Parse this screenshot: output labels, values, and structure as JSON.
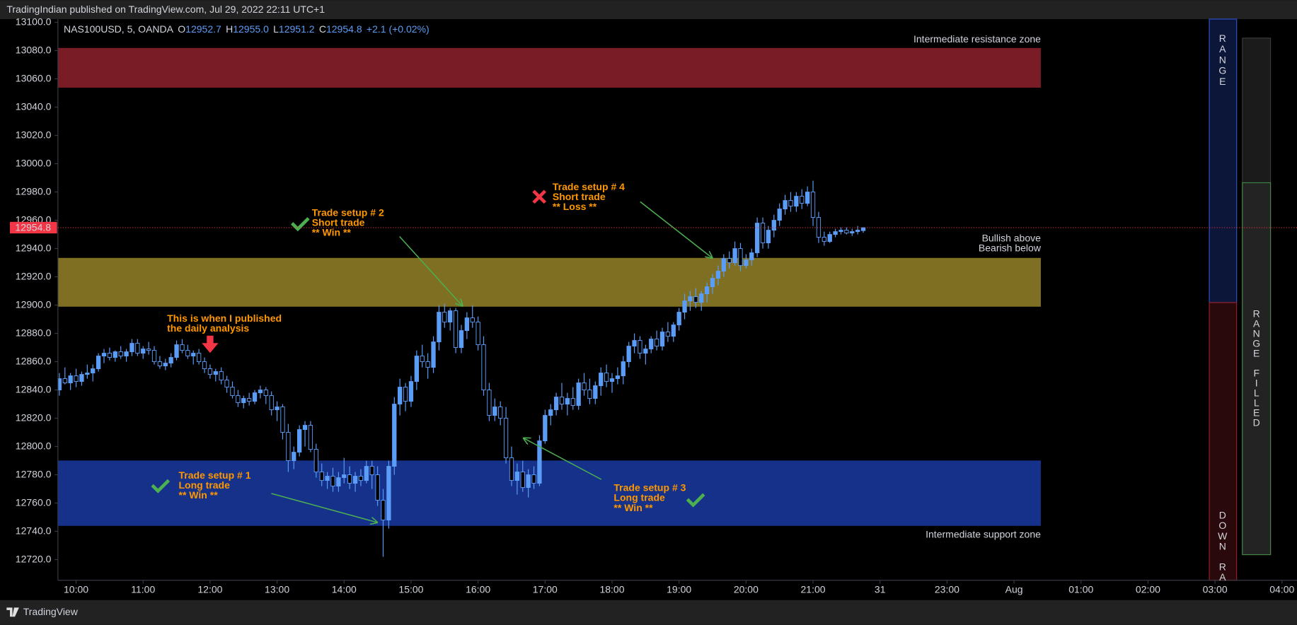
{
  "header": {
    "text": "TradingIndian published on TradingView.com, Jul 29, 2022 22:11 UTC+1"
  },
  "footer": {
    "brand": "TradingView"
  },
  "legend_bar": {
    "symbol": "NAS100USD, 5, OANDA",
    "open_label": "O",
    "open": "12952.7",
    "high_label": "H",
    "high": "12955.0",
    "low_label": "L",
    "low": "12951.2",
    "close_label": "C",
    "close": "12954.8",
    "change": "+2.1 (+0.02%)"
  },
  "range_panel": {
    "top_label": "RANGE",
    "bottom_label": "DOWN RA",
    "fill_label": "RANGE FILLED"
  },
  "chart_data": {
    "type": "candlestick",
    "colors": {
      "up": "#5b9cf6",
      "down": "#000000",
      "wick": "#5b9cf6"
    },
    "xlim": [
      583.7,
      1687.5
    ],
    "ylim": [
      12705.4,
      13102.3
    ],
    "xticks": [
      {
        "value": 600,
        "label": "10:00"
      },
      {
        "value": 660,
        "label": "11:00"
      },
      {
        "value": 720,
        "label": "12:00"
      },
      {
        "value": 780,
        "label": "13:00"
      },
      {
        "value": 840,
        "label": "14:00"
      },
      {
        "value": 900,
        "label": "15:00"
      },
      {
        "value": 960,
        "label": "16:00"
      },
      {
        "value": 1020,
        "label": "17:00"
      },
      {
        "value": 1080,
        "label": "18:00"
      },
      {
        "value": 1140,
        "label": "19:00"
      },
      {
        "value": 1200,
        "label": "20:00"
      },
      {
        "value": 1260,
        "label": "21:00"
      },
      {
        "value": 1320,
        "label": "31"
      },
      {
        "value": 1380,
        "label": "23:00"
      },
      {
        "value": 1440,
        "label": "Aug"
      },
      {
        "value": 1500,
        "label": "01:00"
      },
      {
        "value": 1560,
        "label": "02:00"
      },
      {
        "value": 1620,
        "label": "03:00"
      },
      {
        "value": 1680,
        "label": "04:00"
      }
    ],
    "yticks": [
      {
        "value": 12720,
        "label": "12720.0"
      },
      {
        "value": 12740,
        "label": "12740.0"
      },
      {
        "value": 12760,
        "label": "12760.0"
      },
      {
        "value": 12780,
        "label": "12780.0"
      },
      {
        "value": 12800,
        "label": "12800.0"
      },
      {
        "value": 12820,
        "label": "12820.0"
      },
      {
        "value": 12840,
        "label": "12840.0"
      },
      {
        "value": 12860,
        "label": "12860.0"
      },
      {
        "value": 12880,
        "label": "12880.0"
      },
      {
        "value": 12900,
        "label": "12900.0"
      },
      {
        "value": 12920,
        "label": "12920.0"
      },
      {
        "value": 12940,
        "label": "12940.0"
      },
      {
        "value": 12960,
        "label": "12960.0"
      },
      {
        "value": 12980,
        "label": "12980.0"
      },
      {
        "value": 13000,
        "label": "13000.0"
      },
      {
        "value": 13020,
        "label": "13020.0"
      },
      {
        "value": 13040,
        "label": "13040.0"
      },
      {
        "value": 13060,
        "label": "13060.0"
      },
      {
        "value": 13080,
        "label": "13080.0"
      },
      {
        "value": 13100,
        "label": "13100.0"
      }
    ],
    "last_price": 12954.8,
    "zones": [
      {
        "label": "Intermediate resistance zone",
        "range": [
          13053.8,
          13081.9
        ],
        "x_range": [
          583.7,
          1464
        ],
        "color": "#7a1c26"
      },
      {
        "labels": [
          "Bullish above",
          "Bearish below"
        ],
        "range": [
          12898.9,
          12933.4
        ],
        "x_range": [
          583.7,
          1464
        ],
        "color": "#7f6f22"
      },
      {
        "label": "Intermediate support zone",
        "range": [
          12743.9,
          12790.1
        ],
        "x_range": [
          583.7,
          1464
        ],
        "color": "#15318a"
      }
    ],
    "annotations": [
      {
        "lines": [
          "This is when I published",
          "the daily analysis"
        ]
      },
      {
        "lines": [
          "Trade setup # 1",
          "Long trade",
          "** Win **"
        ]
      },
      {
        "lines": [
          "Trade setup # 2",
          "Short trade",
          "** Win **"
        ]
      },
      {
        "lines": [
          "Trade setup # 3",
          "Long trade",
          "** Win **"
        ]
      },
      {
        "lines": [
          "Trade setup # 4",
          "Short trade",
          "** Loss **"
        ]
      }
    ],
    "x": [
      585,
      590,
      595,
      600,
      605,
      610,
      615,
      620,
      625,
      630,
      635,
      640,
      645,
      650,
      655,
      660,
      665,
      670,
      675,
      680,
      685,
      690,
      695,
      700,
      705,
      710,
      715,
      720,
      725,
      730,
      735,
      740,
      745,
      750,
      755,
      760,
      765,
      770,
      775,
      780,
      785,
      790,
      795,
      800,
      805,
      810,
      815,
      820,
      825,
      830,
      835,
      840,
      845,
      850,
      855,
      860,
      865,
      870,
      875,
      880,
      885,
      890,
      895,
      900,
      905,
      910,
      915,
      920,
      925,
      930,
      935,
      940,
      945,
      950,
      955,
      960,
      965,
      970,
      975,
      980,
      985,
      990,
      995,
      1000,
      1005,
      1010,
      1015,
      1020,
      1025,
      1030,
      1035,
      1040,
      1045,
      1050,
      1055,
      1060,
      1065,
      1070,
      1075,
      1080,
      1085,
      1090,
      1095,
      1100,
      1105,
      1110,
      1115,
      1120,
      1125,
      1130,
      1135,
      1140,
      1145,
      1150,
      1155,
      1160,
      1165,
      1170,
      1175,
      1180,
      1185,
      1190,
      1195,
      1200,
      1205,
      1210,
      1215,
      1220,
      1225,
      1230,
      1235,
      1240,
      1245,
      1250,
      1255,
      1260,
      1265,
      1270,
      1275,
      1280,
      1285,
      1290,
      1295,
      1300,
      1305
    ],
    "ohlc": [
      [
        12840,
        12852,
        12836,
        12848
      ],
      [
        12848,
        12856,
        12844,
        12845
      ],
      [
        12845,
        12852,
        12840,
        12850
      ],
      [
        12850,
        12855,
        12842,
        12846
      ],
      [
        12846,
        12853,
        12843,
        12851
      ],
      [
        12851,
        12858,
        12848,
        12852
      ],
      [
        12852,
        12858,
        12846,
        12855
      ],
      [
        12855,
        12866,
        12853,
        12864
      ],
      [
        12864,
        12869,
        12859,
        12866
      ],
      [
        12866,
        12870,
        12861,
        12863
      ],
      [
        12863,
        12868,
        12860,
        12867
      ],
      [
        12867,
        12871,
        12862,
        12864
      ],
      [
        12864,
        12869,
        12860,
        12867
      ],
      [
        12867,
        12876,
        12864,
        12873
      ],
      [
        12873,
        12876,
        12864,
        12866
      ],
      [
        12866,
        12871,
        12862,
        12869
      ],
      [
        12869,
        12874,
        12865,
        12868
      ],
      [
        12868,
        12871,
        12858,
        12860
      ],
      [
        12860,
        12864,
        12855,
        12857
      ],
      [
        12857,
        12862,
        12854,
        12859
      ],
      [
        12859,
        12866,
        12856,
        12863
      ],
      [
        12863,
        12875,
        12861,
        12872
      ],
      [
        12872,
        12876,
        12866,
        12868
      ],
      [
        12868,
        12872,
        12862,
        12864
      ],
      [
        12864,
        12868,
        12858,
        12866
      ],
      [
        12866,
        12869,
        12858,
        12860
      ],
      [
        12860,
        12863,
        12852,
        12855
      ],
      [
        12855,
        12858,
        12848,
        12851
      ],
      [
        12851,
        12855,
        12846,
        12853
      ],
      [
        12853,
        12856,
        12844,
        12847
      ],
      [
        12847,
        12850,
        12838,
        12842
      ],
      [
        12842,
        12846,
        12834,
        12836
      ],
      [
        12836,
        12840,
        12828,
        12831
      ],
      [
        12831,
        12836,
        12827,
        12834
      ],
      [
        12834,
        12838,
        12829,
        12832
      ],
      [
        12832,
        12840,
        12830,
        12838
      ],
      [
        12838,
        12843,
        12834,
        12840
      ],
      [
        12840,
        12842,
        12830,
        12836
      ],
      [
        12836,
        12839,
        12822,
        12826
      ],
      [
        12826,
        12832,
        12818,
        12828
      ],
      [
        12828,
        12830,
        12805,
        12810
      ],
      [
        12810,
        12816,
        12782,
        12790
      ],
      [
        12790,
        12800,
        12784,
        12796
      ],
      [
        12796,
        12815,
        12793,
        12812
      ],
      [
        12812,
        12818,
        12800,
        12815
      ],
      [
        12815,
        12818,
        12796,
        12798
      ],
      [
        12798,
        12802,
        12778,
        12782
      ],
      [
        12782,
        12788,
        12772,
        12776
      ],
      [
        12776,
        12782,
        12770,
        12779
      ],
      [
        12779,
        12785,
        12768,
        12772
      ],
      [
        12772,
        12782,
        12768,
        12778
      ],
      [
        12778,
        12792,
        12774,
        12780
      ],
      [
        12780,
        12786,
        12770,
        12774
      ],
      [
        12774,
        12782,
        12768,
        12779
      ],
      [
        12779,
        12784,
        12772,
        12776
      ],
      [
        12776,
        12790,
        12774,
        12786
      ],
      [
        12786,
        12790,
        12770,
        12780
      ],
      [
        12780,
        12786,
        12758,
        12762
      ],
      [
        12762,
        12770,
        12722,
        12748
      ],
      [
        12748,
        12790,
        12742,
        12786
      ],
      [
        12786,
        12835,
        12780,
        12830
      ],
      [
        12830,
        12848,
        12822,
        12842
      ],
      [
        12842,
        12845,
        12825,
        12832
      ],
      [
        12832,
        12850,
        12828,
        12846
      ],
      [
        12846,
        12868,
        12840,
        12864
      ],
      [
        12864,
        12872,
        12856,
        12860
      ],
      [
        12860,
        12866,
        12848,
        12856
      ],
      [
        12856,
        12878,
        12852,
        12874
      ],
      [
        12874,
        12900,
        12868,
        12895
      ],
      [
        12895,
        12901,
        12884,
        12888
      ],
      [
        12888,
        12898,
        12882,
        12896
      ],
      [
        12896,
        12898,
        12866,
        12870
      ],
      [
        12870,
        12886,
        12866,
        12882
      ],
      [
        12882,
        12895,
        12876,
        12891
      ],
      [
        12891,
        12900,
        12884,
        12888
      ],
      [
        12888,
        12892,
        12868,
        12872
      ],
      [
        12872,
        12878,
        12836,
        12840
      ],
      [
        12840,
        12845,
        12818,
        12822
      ],
      [
        12822,
        12834,
        12818,
        12828
      ],
      [
        12828,
        12832,
        12815,
        12820
      ],
      [
        12820,
        12828,
        12788,
        12792
      ],
      [
        12792,
        12800,
        12772,
        12776
      ],
      [
        12776,
        12788,
        12766,
        12782
      ],
      [
        12782,
        12790,
        12768,
        12771
      ],
      [
        12771,
        12784,
        12764,
        12780
      ],
      [
        12780,
        12786,
        12770,
        12774
      ],
      [
        12774,
        12808,
        12772,
        12804
      ],
      [
        12804,
        12826,
        12802,
        12822
      ],
      [
        12822,
        12830,
        12815,
        12826
      ],
      [
        12826,
        12838,
        12822,
        12835
      ],
      [
        12835,
        12845,
        12826,
        12830
      ],
      [
        12830,
        12838,
        12822,
        12834
      ],
      [
        12834,
        12842,
        12826,
        12829
      ],
      [
        12829,
        12848,
        12826,
        12845
      ],
      [
        12845,
        12852,
        12836,
        12840
      ],
      [
        12840,
        12848,
        12830,
        12834
      ],
      [
        12834,
        12846,
        12830,
        12843
      ],
      [
        12843,
        12856,
        12836,
        12852
      ],
      [
        12852,
        12858,
        12842,
        12846
      ],
      [
        12846,
        12852,
        12838,
        12848
      ],
      [
        12848,
        12856,
        12844,
        12850
      ],
      [
        12850,
        12864,
        12844,
        12860
      ],
      [
        12860,
        12874,
        12856,
        12871
      ],
      [
        12871,
        12880,
        12866,
        12875
      ],
      [
        12875,
        12878,
        12862,
        12866
      ],
      [
        12866,
        12872,
        12858,
        12869
      ],
      [
        12869,
        12878,
        12866,
        12876
      ],
      [
        12876,
        12882,
        12868,
        12871
      ],
      [
        12871,
        12884,
        12868,
        12881
      ],
      [
        12881,
        12888,
        12874,
        12878
      ],
      [
        12878,
        12888,
        12874,
        12886
      ],
      [
        12886,
        12898,
        12882,
        12895
      ],
      [
        12895,
        12908,
        12890,
        12903
      ],
      [
        12903,
        12910,
        12896,
        12906
      ],
      [
        12906,
        12912,
        12898,
        12902
      ],
      [
        12902,
        12910,
        12896,
        12908
      ],
      [
        12908,
        12916,
        12902,
        12913
      ],
      [
        12913,
        12922,
        12908,
        12919
      ],
      [
        12919,
        12928,
        12914,
        12924
      ],
      [
        12924,
        12936,
        12920,
        12933
      ],
      [
        12933,
        12938,
        12926,
        12930
      ],
      [
        12930,
        12945,
        12928,
        12940
      ],
      [
        12940,
        12944,
        12924,
        12928
      ],
      [
        12928,
        12936,
        12926,
        12932
      ],
      [
        12932,
        12940,
        12928,
        12937
      ],
      [
        12937,
        12962,
        12934,
        12958
      ],
      [
        12958,
        12962,
        12940,
        12944
      ],
      [
        12944,
        12956,
        12940,
        12953
      ],
      [
        12953,
        12964,
        12948,
        12960
      ],
      [
        12960,
        12972,
        12956,
        12968
      ],
      [
        12968,
        12978,
        12964,
        12974
      ],
      [
        12974,
        12980,
        12966,
        12970
      ],
      [
        12970,
        12980,
        12966,
        12977
      ],
      [
        12977,
        12982,
        12968,
        12972
      ],
      [
        12972,
        12984,
        12970,
        12980
      ],
      [
        12980,
        12988,
        12956,
        12962
      ],
      [
        12962,
        12966,
        12944,
        12948
      ],
      [
        12948,
        12952,
        12942,
        12945
      ],
      [
        12945,
        12952,
        12944,
        12950
      ],
      [
        12950,
        12954,
        12948,
        12952
      ],
      [
        12952,
        12955,
        12950,
        12953
      ],
      [
        12953,
        12955,
        12950,
        12951
      ],
      [
        12951,
        12954,
        12949,
        12952
      ],
      [
        12952,
        12956,
        12950,
        12953
      ],
      [
        12952.7,
        12955,
        12951.2,
        12954.8
      ]
    ]
  }
}
